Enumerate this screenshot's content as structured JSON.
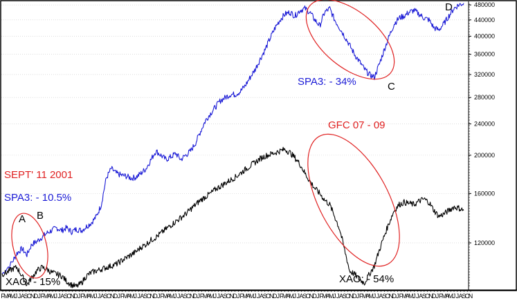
{
  "chart_data": {
    "type": "line",
    "title": "",
    "xlabel": "",
    "ylabel": "",
    "y_scale": "log",
    "y_range": [
      92000,
      490000
    ],
    "y_ticks": [
      120000,
      160000,
      200000,
      240000,
      280000,
      320000,
      360000,
      400000,
      440000,
      480000
    ],
    "y_tick_labels": [
      "120000",
      "160000",
      "200000",
      "240000",
      "280000",
      "320000",
      "360000",
      "400000",
      "440000",
      "480000"
    ],
    "x_month_labels": [
      "F",
      "M",
      "A",
      "M",
      "J",
      "J",
      "A",
      "S",
      "O",
      "N",
      "D",
      "J",
      "F",
      "M",
      "A",
      "M",
      "J",
      "J",
      "A",
      "S",
      "O",
      "N",
      "D",
      "J",
      "F",
      "M",
      "A",
      "M",
      "J",
      "J",
      "A",
      "S",
      "O",
      "N",
      "D",
      "J",
      "F",
      "M",
      "A",
      "M",
      "J",
      "J",
      "A",
      "S",
      "O",
      "N",
      "D",
      "J",
      "F",
      "M",
      "A",
      "M",
      "J",
      "J",
      "A",
      "S",
      "O",
      "N",
      "D",
      "J",
      "F",
      "M",
      "A",
      "M",
      "J",
      "J",
      "A",
      "S",
      "O",
      "N",
      "D",
      "J",
      "F",
      "M",
      "A",
      "M",
      "J",
      "J",
      "A",
      "S",
      "O",
      "N",
      "D",
      "J",
      "F",
      "M",
      "A",
      "M",
      "J",
      "J",
      "A",
      "S",
      "O",
      "N",
      "D",
      "J",
      "F",
      "M",
      "A",
      "M",
      "J",
      "J",
      "A",
      "S",
      "O",
      "N",
      "D",
      "J",
      "F",
      "M",
      "A",
      "M",
      "J",
      "J",
      "A",
      "S",
      "O",
      "N",
      "D",
      "J",
      "F",
      "M",
      "A",
      "M",
      "J",
      "J",
      "A",
      "S",
      "O",
      "N",
      "D",
      "J",
      "F",
      "M",
      "A",
      "M",
      "J",
      "J",
      "A",
      "S",
      "O",
      "N",
      "D",
      "J",
      "F",
      "M",
      "A",
      "M",
      "J",
      "J",
      "A",
      "S",
      "O",
      "N"
    ],
    "x_axis_letters": [
      "F",
      "M",
      "A",
      "M",
      "J",
      "J",
      "A",
      "S",
      "O",
      "N",
      "D",
      "J",
      "F",
      "M",
      "A",
      "M",
      "J",
      "J",
      "A",
      "S",
      "O",
      "N",
      "D",
      "J",
      "F",
      "M",
      "A",
      "M",
      "J",
      "J",
      "A",
      "S",
      "O",
      "N",
      "D",
      "J",
      "F",
      "M",
      "A",
      "M",
      "J",
      "J",
      "A",
      "S",
      "O",
      "N",
      "D",
      "J",
      "F",
      "M",
      "A",
      "M",
      "J",
      "J",
      "A",
      "S",
      "O",
      "N",
      "D",
      "J",
      "F",
      "M",
      "A",
      "M",
      "J",
      "J",
      "A",
      "S",
      "O",
      "N",
      "D",
      "J",
      "F",
      "M",
      "A",
      "M",
      "J",
      "J",
      "A",
      "S",
      "O",
      "N",
      "D",
      "J",
      "F",
      "M",
      "A",
      "M",
      "J",
      "J",
      "A",
      "S",
      "O",
      "N",
      "D",
      "J",
      "F",
      "M",
      "A",
      "M",
      "J",
      "J",
      "A",
      "S",
      "O",
      "N",
      "D",
      "J",
      "F",
      "M",
      "A",
      "M",
      "J",
      "J",
      "A",
      "S",
      "O",
      "N",
      "D",
      "J",
      "F",
      "M",
      "A",
      "M",
      "J",
      "J",
      "A",
      "S",
      "O",
      "N",
      "D",
      "J",
      "F",
      "M",
      "A",
      "M",
      "J",
      "J",
      "A",
      "S",
      "O",
      "N"
    ],
    "series": [
      {
        "color": "#1a1ad6",
        "values": [
          [
            0,
            100000
          ],
          [
            2,
            107000
          ],
          [
            3,
            113000
          ],
          [
            4,
            116000
          ],
          [
            5,
            112000
          ],
          [
            6,
            119000
          ],
          [
            7,
            121000
          ],
          [
            8,
            124000
          ],
          [
            9,
            127000
          ],
          [
            10,
            129000
          ],
          [
            11,
            131000
          ],
          [
            12,
            129000
          ],
          [
            13,
            131000
          ],
          [
            14,
            128000
          ],
          [
            15,
            130000
          ],
          [
            16,
            129000
          ],
          [
            17,
            132000
          ],
          [
            18,
            135000
          ],
          [
            19,
            140000
          ],
          [
            20,
            150000
          ],
          [
            21,
            175000
          ],
          [
            22,
            185000
          ],
          [
            23,
            180000
          ],
          [
            24,
            178000
          ],
          [
            25,
            177000
          ],
          [
            26,
            175000
          ],
          [
            27,
            176000
          ],
          [
            28,
            180000
          ],
          [
            29,
            185000
          ],
          [
            30,
            195000
          ],
          [
            31,
            205000
          ],
          [
            32,
            200000
          ],
          [
            33,
            195000
          ],
          [
            34,
            198000
          ],
          [
            35,
            202000
          ],
          [
            36,
            195000
          ],
          [
            37,
            200000
          ],
          [
            38,
            205000
          ],
          [
            39,
            215000
          ],
          [
            40,
            230000
          ],
          [
            41,
            245000
          ],
          [
            42,
            255000
          ],
          [
            43,
            265000
          ],
          [
            44,
            275000
          ],
          [
            45,
            280000
          ],
          [
            46,
            285000
          ],
          [
            47,
            285000
          ],
          [
            48,
            290000
          ],
          [
            49,
            300000
          ],
          [
            50,
            315000
          ],
          [
            51,
            330000
          ],
          [
            52,
            350000
          ],
          [
            53,
            370000
          ],
          [
            54,
            395000
          ],
          [
            55,
            420000
          ],
          [
            56,
            440000
          ],
          [
            57,
            455000
          ],
          [
            58,
            460000
          ],
          [
            59,
            450000
          ],
          [
            60,
            465000
          ],
          [
            61,
            470000
          ],
          [
            62,
            460000
          ],
          [
            63,
            440000
          ],
          [
            64,
            425000
          ],
          [
            65,
            460000
          ],
          [
            66,
            470000
          ],
          [
            67,
            440000
          ],
          [
            68,
            420000
          ],
          [
            69,
            400000
          ],
          [
            70,
            380000
          ],
          [
            71,
            360000
          ],
          [
            72,
            345000
          ],
          [
            73,
            330000
          ],
          [
            74,
            320000
          ],
          [
            75,
            315000
          ],
          [
            76,
            340000
          ],
          [
            77,
            370000
          ],
          [
            78,
            400000
          ],
          [
            79,
            430000
          ],
          [
            80,
            445000
          ],
          [
            81,
            450000
          ],
          [
            82,
            460000
          ],
          [
            83,
            465000
          ],
          [
            84,
            455000
          ],
          [
            85,
            445000
          ],
          [
            86,
            440000
          ],
          [
            87,
            420000
          ],
          [
            88,
            415000
          ],
          [
            89,
            430000
          ],
          [
            90,
            450000
          ],
          [
            91,
            470000
          ],
          [
            92,
            480000
          ],
          [
            93,
            485000
          ]
        ]
      },
      {
        "color": "#000000",
        "values": [
          [
            0,
            100000
          ],
          [
            1,
            101000
          ],
          [
            2,
            103000
          ],
          [
            3,
            104000
          ],
          [
            4,
            99000
          ],
          [
            5,
            94000
          ],
          [
            6,
            98000
          ],
          [
            7,
            102000
          ],
          [
            8,
            104000
          ],
          [
            9,
            103000
          ],
          [
            10,
            101000
          ],
          [
            11,
            100000
          ],
          [
            12,
            99000
          ],
          [
            13,
            96000
          ],
          [
            14,
            94000
          ],
          [
            15,
            93000
          ],
          [
            16,
            95000
          ],
          [
            17,
            99000
          ],
          [
            18,
            101000
          ],
          [
            19,
            102000
          ],
          [
            20,
            103000
          ],
          [
            21,
            104000
          ],
          [
            22,
            105000
          ],
          [
            23,
            106000
          ],
          [
            24,
            108000
          ],
          [
            25,
            110000
          ],
          [
            26,
            112000
          ],
          [
            27,
            114000
          ],
          [
            28,
            117000
          ],
          [
            29,
            119000
          ],
          [
            30,
            122000
          ],
          [
            31,
            124000
          ],
          [
            32,
            127000
          ],
          [
            33,
            130000
          ],
          [
            34,
            133000
          ],
          [
            35,
            136000
          ],
          [
            36,
            139000
          ],
          [
            37,
            142000
          ],
          [
            38,
            146000
          ],
          [
            39,
            150000
          ],
          [
            40,
            154000
          ],
          [
            41,
            157000
          ],
          [
            42,
            160000
          ],
          [
            43,
            164000
          ],
          [
            44,
            167000
          ],
          [
            45,
            170000
          ],
          [
            46,
            173000
          ],
          [
            47,
            176000
          ],
          [
            48,
            180000
          ],
          [
            49,
            184000
          ],
          [
            50,
            188000
          ],
          [
            51,
            192000
          ],
          [
            52,
            196000
          ],
          [
            53,
            199000
          ],
          [
            54,
            201000
          ],
          [
            55,
            203000
          ],
          [
            56,
            205000
          ],
          [
            57,
            207000
          ],
          [
            58,
            203000
          ],
          [
            59,
            197000
          ],
          [
            60,
            190000
          ],
          [
            61,
            180000
          ],
          [
            62,
            172000
          ],
          [
            63,
            165000
          ],
          [
            64,
            160000
          ],
          [
            65,
            154000
          ],
          [
            66,
            150000
          ],
          [
            67,
            140000
          ],
          [
            68,
            130000
          ],
          [
            69,
            115000
          ],
          [
            70,
            102000
          ],
          [
            71,
            100000
          ],
          [
            72,
            97000
          ],
          [
            73,
            95000
          ],
          [
            74,
            100000
          ],
          [
            75,
            105000
          ],
          [
            76,
            115000
          ],
          [
            77,
            125000
          ],
          [
            78,
            135000
          ],
          [
            79,
            145000
          ],
          [
            80,
            150000
          ],
          [
            81,
            152000
          ],
          [
            82,
            151000
          ],
          [
            83,
            150000
          ],
          [
            84,
            153000
          ],
          [
            85,
            155000
          ],
          [
            86,
            152000
          ],
          [
            87,
            145000
          ],
          [
            88,
            140000
          ],
          [
            89,
            142000
          ],
          [
            90,
            145000
          ],
          [
            91,
            148000
          ],
          [
            92,
            147000
          ],
          [
            93,
            145000
          ]
        ]
      }
    ],
    "annotations": [
      {
        "id": "sept",
        "text": "SEPT' 11 2001",
        "color": "#e02020"
      },
      {
        "id": "spa3_1",
        "text": "SPA3: - 10.5%",
        "color": "#1a1ad6"
      },
      {
        "id": "a",
        "text": "A",
        "color": "#000000"
      },
      {
        "id": "b",
        "text": "B",
        "color": "#000000"
      },
      {
        "id": "xao_1",
        "text": "XAO: - 15%",
        "color": "#000000"
      },
      {
        "id": "gfc",
        "text": "GFC 07 - 09",
        "color": "#e02020"
      },
      {
        "id": "spa3_2",
        "text": "SPA3: - 34%",
        "color": "#1a1ad6"
      },
      {
        "id": "c",
        "text": "C",
        "color": "#000000"
      },
      {
        "id": "d",
        "text": "D",
        "color": "#000000"
      },
      {
        "id": "xao_2",
        "text": "XAO: - 54%",
        "color": "#000000"
      }
    ]
  }
}
